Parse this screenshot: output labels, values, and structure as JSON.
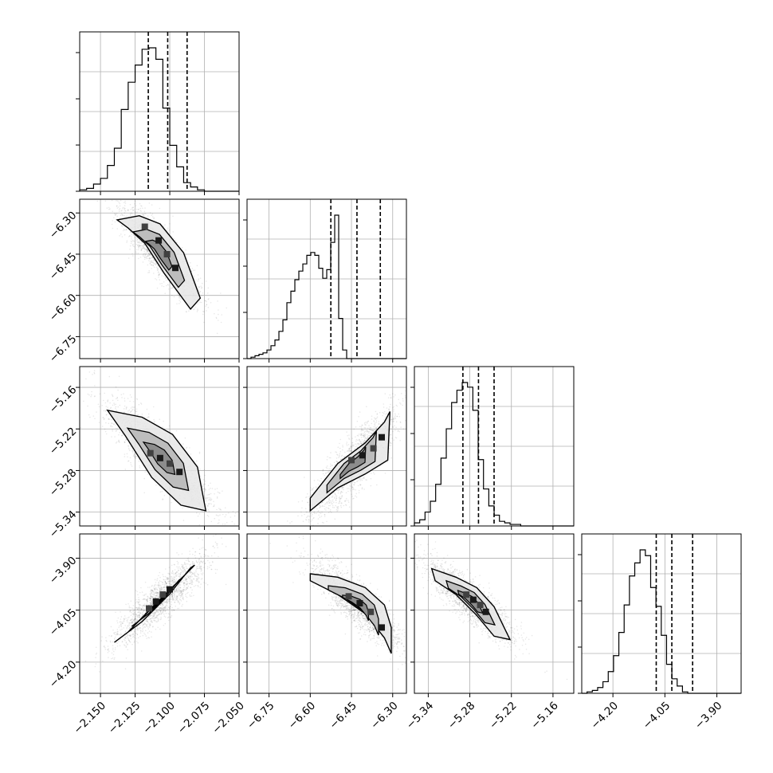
{
  "chart_data": {
    "type": "scatter",
    "title": "",
    "parameters": [
      {
        "index": 0,
        "range": [
          -2.165,
          -2.05
        ],
        "ticks": [
          "−2.150",
          "−2.125",
          "−2.100",
          "−2.075",
          "−2.050"
        ],
        "tick_values": [
          -2.15,
          -2.125,
          -2.1,
          -2.075,
          -2.05
        ],
        "quantiles": [
          -2.1155,
          -2.1015,
          -2.0875
        ]
      },
      {
        "index": 1,
        "range": [
          -6.83,
          -6.25
        ],
        "ticks": [
          "−6.75",
          "−6.60",
          "−6.45",
          "−6.30"
        ],
        "tick_values": [
          -6.75,
          -6.6,
          -6.45,
          -6.3
        ],
        "quantiles": [
          -6.525,
          -6.43,
          -6.345
        ]
      },
      {
        "index": 2,
        "range": [
          -5.36,
          -5.13
        ],
        "ticks": [
          "−5.34",
          "−5.28",
          "−5.22",
          "−5.16"
        ],
        "tick_values": [
          -5.34,
          -5.28,
          -5.22,
          -5.16
        ],
        "quantiles": [
          -5.29,
          -5.2675,
          -5.245
        ]
      },
      {
        "index": 3,
        "range": [
          -4.29,
          -3.83
        ],
        "ticks": [
          "−4.20",
          "−4.05",
          "−3.90"
        ],
        "tick_values": [
          -4.2,
          -4.05,
          -3.9
        ],
        "quantiles": [
          -4.075,
          -4.03,
          -3.97
        ]
      }
    ],
    "histograms": [
      {
        "param": 0,
        "bin_start": -2.165,
        "bin_width": 0.005,
        "counts": [
          0.01,
          0.02,
          0.05,
          0.09,
          0.18,
          0.3,
          0.57,
          0.76,
          0.88,
          0.99,
          1.0,
          0.92,
          0.58,
          0.32,
          0.17,
          0.06,
          0.03,
          0.01,
          0.0,
          0.0,
          0.0,
          0.0,
          0.0
        ]
      },
      {
        "param": 1,
        "bin_start": -6.83,
        "bin_width": 0.0145,
        "counts": [
          0.0,
          0.01,
          0.02,
          0.03,
          0.04,
          0.06,
          0.09,
          0.13,
          0.19,
          0.27,
          0.39,
          0.47,
          0.55,
          0.61,
          0.66,
          0.72,
          0.74,
          0.72,
          0.63,
          0.56,
          0.62,
          0.81,
          1.0,
          0.28,
          0.06,
          0.0,
          0.0,
          0.0,
          0.0,
          0.0,
          0.0,
          0.0,
          0.0,
          0.0,
          0.0,
          0.0,
          0.0,
          0.0,
          0.0,
          0.0
        ]
      },
      {
        "param": 2,
        "bin_start": -5.36,
        "bin_width": 0.00767,
        "counts": [
          0.02,
          0.04,
          0.09,
          0.16,
          0.27,
          0.44,
          0.63,
          0.8,
          0.88,
          0.93,
          0.9,
          0.75,
          0.43,
          0.24,
          0.13,
          0.07,
          0.03,
          0.02,
          0.01,
          0.01,
          0.0,
          0.0,
          0.0,
          0.0,
          0.0,
          0.0,
          0.0,
          0.0,
          0.0,
          0.0
        ]
      },
      {
        "param": 3,
        "bin_start": -4.29,
        "bin_width": 0.0153,
        "counts": [
          0.0,
          0.01,
          0.02,
          0.04,
          0.08,
          0.15,
          0.26,
          0.42,
          0.61,
          0.81,
          0.9,
          0.99,
          0.95,
          0.73,
          0.6,
          0.4,
          0.2,
          0.1,
          0.05,
          0.01,
          0.0,
          0.0,
          0.0,
          0.0,
          0.0,
          0.0,
          0.0,
          0.0,
          0.0,
          0.0
        ]
      }
    ],
    "pairs": [
      {
        "x": 0,
        "y": 1,
        "center": [
          -2.1,
          -6.47
        ],
        "contour": [
          [
            -2.138,
            -6.325
          ],
          [
            -2.122,
            -6.31
          ],
          [
            -2.107,
            -6.34
          ],
          [
            -2.09,
            -6.445
          ],
          [
            -2.078,
            -6.61
          ],
          [
            -2.085,
            -6.65
          ],
          [
            -2.104,
            -6.52
          ],
          [
            -2.118,
            -6.41
          ],
          [
            -2.13,
            -6.355
          ]
        ],
        "dense": [
          [
            -2.118,
            -6.35
          ],
          [
            -2.108,
            -6.4
          ],
          [
            -2.102,
            -6.45
          ],
          [
            -2.096,
            -6.5
          ]
        ]
      },
      {
        "x": 0,
        "y": 2,
        "center": [
          -2.103,
          -5.27
        ],
        "contour": [
          [
            -2.145,
            -5.193
          ],
          [
            -2.12,
            -5.203
          ],
          [
            -2.098,
            -5.228
          ],
          [
            -2.08,
            -5.275
          ],
          [
            -2.074,
            -5.338
          ],
          [
            -2.092,
            -5.33
          ],
          [
            -2.113,
            -5.29
          ],
          [
            -2.132,
            -5.23
          ]
        ],
        "dense": [
          [
            -2.114,
            -5.255
          ],
          [
            -2.107,
            -5.262
          ],
          [
            -2.1,
            -5.27
          ],
          [
            -2.093,
            -5.282
          ]
        ]
      },
      {
        "x": 1,
        "y": 2,
        "center": [
          -6.43,
          -5.27
        ],
        "contour": [
          [
            -6.6,
            -5.32
          ],
          [
            -6.5,
            -5.27
          ],
          [
            -6.4,
            -5.24
          ],
          [
            -6.33,
            -5.21
          ],
          [
            -6.31,
            -5.195
          ],
          [
            -6.318,
            -5.265
          ],
          [
            -6.4,
            -5.285
          ],
          [
            -6.5,
            -5.305
          ],
          [
            -6.6,
            -5.338
          ]
        ],
        "dense": [
          [
            -6.45,
            -5.265
          ],
          [
            -6.41,
            -5.258
          ],
          [
            -6.37,
            -5.248
          ],
          [
            -6.34,
            -5.232
          ]
        ]
      },
      {
        "x": 0,
        "y": 3,
        "center": [
          -2.108,
          -4.02
        ],
        "contour": [
          [
            -2.14,
            -4.143
          ],
          [
            -2.12,
            -4.083
          ],
          [
            -2.1,
            -4.003
          ],
          [
            -2.085,
            -3.928
          ],
          [
            -2.082,
            -3.92
          ],
          [
            -2.09,
            -3.952
          ],
          [
            -2.11,
            -4.03
          ],
          [
            -2.13,
            -4.113
          ]
        ],
        "dense": [
          [
            -2.115,
            -4.045
          ],
          [
            -2.11,
            -4.025
          ],
          [
            -2.105,
            -4.005
          ],
          [
            -2.1,
            -3.99
          ]
        ]
      },
      {
        "x": 1,
        "y": 3,
        "center": [
          -6.41,
          -4.02
        ],
        "contour": [
          [
            -6.6,
            -3.945
          ],
          [
            -6.5,
            -3.955
          ],
          [
            -6.4,
            -3.985
          ],
          [
            -6.33,
            -4.035
          ],
          [
            -6.305,
            -4.1
          ],
          [
            -6.305,
            -4.175
          ],
          [
            -6.33,
            -4.13
          ],
          [
            -6.4,
            -4.06
          ],
          [
            -6.5,
            -4.005
          ],
          [
            -6.6,
            -3.965
          ]
        ],
        "dense": [
          [
            -6.46,
            -4.01
          ],
          [
            -6.42,
            -4.03
          ],
          [
            -6.38,
            -4.055
          ],
          [
            -6.34,
            -4.1
          ]
        ]
      },
      {
        "x": 2,
        "y": 3,
        "center": [
          -5.27,
          -4.03
        ],
        "contour": [
          [
            -5.335,
            -3.93
          ],
          [
            -5.3,
            -3.955
          ],
          [
            -5.27,
            -3.985
          ],
          [
            -5.245,
            -4.04
          ],
          [
            -5.222,
            -4.135
          ],
          [
            -5.245,
            -4.125
          ],
          [
            -5.27,
            -4.065
          ],
          [
            -5.3,
            -4.005
          ],
          [
            -5.33,
            -3.965
          ]
        ],
        "dense": [
          [
            -5.285,
            -4.005
          ],
          [
            -5.275,
            -4.02
          ],
          [
            -5.265,
            -4.035
          ],
          [
            -5.257,
            -4.055
          ]
        ]
      }
    ],
    "grid": true
  }
}
